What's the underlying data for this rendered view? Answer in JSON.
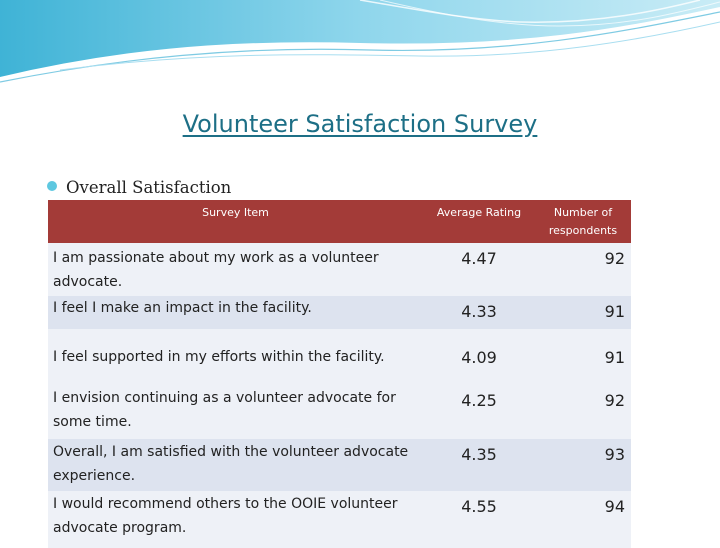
{
  "slide": {
    "title": "Volunteer Satisfaction Survey",
    "bullet": "Overall Satisfaction"
  },
  "table": {
    "headers": [
      "Survey Item",
      "Average Rating",
      "Number of respondents"
    ],
    "rows": [
      {
        "item": "I am passionate about my work as a volunteer advocate.",
        "rating": "4.47",
        "count": "92"
      },
      {
        "item": "I feel I make an impact in the facility.",
        "rating": "4.33",
        "count": "91"
      },
      {
        "item": "I feel supported in my efforts within the facility.",
        "rating": "4.09",
        "count": "91"
      },
      {
        "item": "I envision continuing as a volunteer advocate for some time.",
        "rating": "4.25",
        "count": "92"
      },
      {
        "item": "Overall, I am satisfied with the volunteer advocate experience.",
        "rating": "4.35",
        "count": "93"
      },
      {
        "item": "I would recommend others to the OOIE volunteer advocate program.",
        "rating": "4.55",
        "count": "94"
      }
    ]
  },
  "colors": {
    "title": "#1d6f86",
    "header_bg": "#a33b38",
    "row_light": "#eef1f7",
    "row_dark": "#dde3ef",
    "accent": "#5ec8e0"
  }
}
